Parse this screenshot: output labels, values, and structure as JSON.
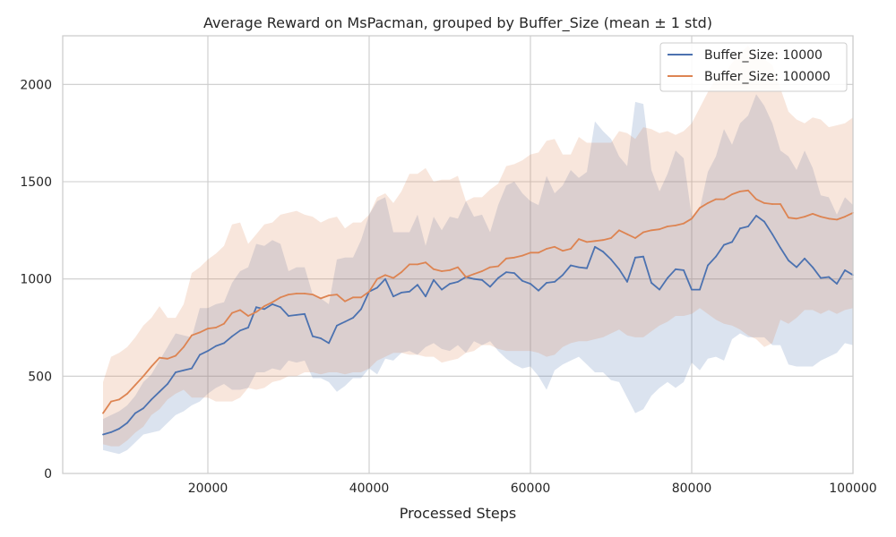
{
  "chart_data": {
    "type": "line",
    "title": "Average Reward on MsPacman, grouped by Buffer_Size (mean ± 1 std)",
    "xlabel": "Processed Steps",
    "ylabel": "",
    "xlim": [
      2000,
      100000
    ],
    "ylim": [
      0,
      2250
    ],
    "xticks": [
      20000,
      40000,
      60000,
      80000,
      100000
    ],
    "yticks": [
      0,
      500,
      1000,
      1500,
      2000
    ],
    "grid": true,
    "legend_position": "top-right",
    "x": [
      7000,
      8000,
      9000,
      10000,
      11000,
      12000,
      13000,
      14000,
      15000,
      16000,
      17000,
      18000,
      19000,
      20000,
      21000,
      22000,
      23000,
      24000,
      25000,
      26000,
      27000,
      28000,
      29000,
      30000,
      31000,
      32000,
      33000,
      34000,
      35000,
      36000,
      37000,
      38000,
      39000,
      40000,
      41000,
      42000,
      43000,
      44000,
      45000,
      46000,
      47000,
      48000,
      49000,
      50000,
      51000,
      52000,
      53000,
      54000,
      55000,
      56000,
      57000,
      58000,
      59000,
      60000,
      61000,
      62000,
      63000,
      64000,
      65000,
      66000,
      67000,
      68000,
      69000,
      70000,
      71000,
      72000,
      73000,
      74000,
      75000,
      76000,
      77000,
      78000,
      79000,
      80000,
      81000,
      82000,
      83000,
      84000,
      85000,
      86000,
      87000,
      88000,
      89000,
      90000,
      91000,
      92000,
      93000,
      94000,
      95000,
      96000,
      97000,
      98000,
      99000,
      100000
    ],
    "series": [
      {
        "name": "Buffer_Size: 10000",
        "color": "#4c72b0",
        "values": [
          200,
          212,
          230,
          260,
          310,
          335,
          380,
          420,
          460,
          520,
          530,
          540,
          610,
          630,
          655,
          670,
          705,
          735,
          750,
          855,
          845,
          870,
          855,
          810,
          815,
          820,
          705,
          695,
          670,
          760,
          780,
          800,
          845,
          935,
          955,
          1000,
          910,
          930,
          935,
          970,
          910,
          995,
          945,
          975,
          985,
          1010,
          1000,
          995,
          960,
          1005,
          1035,
          1030,
          990,
          975,
          940,
          980,
          985,
          1020,
          1070,
          1060,
          1055,
          1165,
          1140,
          1100,
          1050,
          985,
          1110,
          1115,
          980,
          945,
          1005,
          1050,
          1045,
          945,
          945,
          1070,
          1115,
          1175,
          1190,
          1260,
          1270,
          1325,
          1295,
          1230,
          1160,
          1095,
          1060,
          1105,
          1060,
          1005,
          1010,
          975,
          1045,
          1020
        ],
        "upper": [
          280,
          300,
          320,
          350,
          400,
          470,
          510,
          580,
          650,
          720,
          710,
          700,
          850,
          850,
          870,
          880,
          980,
          1040,
          1060,
          1180,
          1170,
          1200,
          1180,
          1040,
          1060,
          1060,
          920,
          900,
          870,
          1100,
          1110,
          1110,
          1200,
          1330,
          1400,
          1420,
          1240,
          1240,
          1240,
          1330,
          1170,
          1320,
          1250,
          1320,
          1310,
          1400,
          1320,
          1330,
          1240,
          1380,
          1480,
          1500,
          1440,
          1400,
          1380,
          1530,
          1440,
          1480,
          1560,
          1520,
          1550,
          1810,
          1760,
          1720,
          1630,
          1580,
          1910,
          1900,
          1560,
          1450,
          1540,
          1660,
          1620,
          1320,
          1360,
          1550,
          1630,
          1770,
          1690,
          1800,
          1840,
          1950,
          1890,
          1800,
          1660,
          1630,
          1560,
          1660,
          1570,
          1430,
          1420,
          1330,
          1420,
          1380
        ],
        "lower": [
          120,
          110,
          100,
          120,
          160,
          200,
          210,
          220,
          260,
          300,
          320,
          350,
          370,
          410,
          440,
          460,
          430,
          430,
          440,
          520,
          520,
          540,
          530,
          580,
          570,
          580,
          490,
          490,
          470,
          420,
          450,
          490,
          490,
          540,
          510,
          590,
          580,
          620,
          630,
          610,
          650,
          670,
          640,
          630,
          660,
          620,
          680,
          660,
          680,
          630,
          590,
          560,
          540,
          550,
          500,
          430,
          530,
          560,
          580,
          600,
          560,
          520,
          520,
          480,
          470,
          390,
          310,
          330,
          400,
          440,
          470,
          440,
          470,
          570,
          530,
          590,
          600,
          580,
          690,
          720,
          700,
          700,
          700,
          660,
          660,
          560,
          550,
          550,
          550,
          580,
          600,
          620,
          670,
          660
        ]
      },
      {
        "name": "Buffer_Size: 100000",
        "color": "#dd8452",
        "values": [
          310,
          370,
          380,
          410,
          455,
          500,
          550,
          595,
          590,
          605,
          650,
          710,
          725,
          745,
          750,
          770,
          825,
          840,
          810,
          830,
          860,
          880,
          905,
          920,
          925,
          925,
          920,
          900,
          915,
          920,
          885,
          905,
          905,
          935,
          1000,
          1020,
          1005,
          1035,
          1075,
          1075,
          1085,
          1050,
          1040,
          1045,
          1060,
          1010,
          1025,
          1040,
          1060,
          1065,
          1105,
          1110,
          1120,
          1135,
          1135,
          1155,
          1165,
          1145,
          1155,
          1205,
          1190,
          1195,
          1200,
          1210,
          1250,
          1230,
          1210,
          1240,
          1250,
          1255,
          1270,
          1275,
          1285,
          1310,
          1365,
          1390,
          1410,
          1410,
          1435,
          1450,
          1455,
          1410,
          1390,
          1385,
          1385,
          1315,
          1310,
          1320,
          1335,
          1320,
          1310,
          1305,
          1320,
          1340
        ],
        "upper": [
          470,
          600,
          620,
          650,
          700,
          760,
          800,
          860,
          800,
          800,
          870,
          1030,
          1060,
          1100,
          1130,
          1170,
          1280,
          1290,
          1180,
          1230,
          1280,
          1290,
          1330,
          1340,
          1350,
          1330,
          1320,
          1290,
          1310,
          1320,
          1260,
          1290,
          1290,
          1330,
          1420,
          1440,
          1390,
          1450,
          1540,
          1540,
          1570,
          1500,
          1510,
          1510,
          1530,
          1400,
          1420,
          1420,
          1460,
          1490,
          1580,
          1590,
          1610,
          1640,
          1650,
          1710,
          1720,
          1640,
          1640,
          1730,
          1700,
          1700,
          1700,
          1700,
          1760,
          1750,
          1720,
          1780,
          1770,
          1750,
          1760,
          1740,
          1760,
          1800,
          1880,
          1960,
          2030,
          2050,
          2110,
          2160,
          2200,
          2130,
          2130,
          2100,
          1980,
          1860,
          1820,
          1800,
          1830,
          1820,
          1780,
          1790,
          1800,
          1830
        ],
        "lower": [
          150,
          140,
          140,
          170,
          210,
          240,
          300,
          330,
          380,
          410,
          430,
          390,
          390,
          390,
          370,
          370,
          370,
          390,
          440,
          430,
          440,
          470,
          480,
          500,
          500,
          520,
          520,
          510,
          520,
          520,
          510,
          520,
          520,
          540,
          580,
          600,
          620,
          620,
          610,
          610,
          600,
          600,
          570,
          580,
          590,
          620,
          630,
          660,
          660,
          640,
          630,
          630,
          630,
          630,
          620,
          600,
          610,
          650,
          670,
          680,
          680,
          690,
          700,
          720,
          740,
          710,
          700,
          700,
          730,
          760,
          780,
          810,
          810,
          820,
          850,
          820,
          790,
          770,
          760,
          740,
          710,
          690,
          650,
          670,
          790,
          770,
          800,
          840,
          840,
          820,
          840,
          820,
          840,
          850
        ]
      }
    ]
  }
}
